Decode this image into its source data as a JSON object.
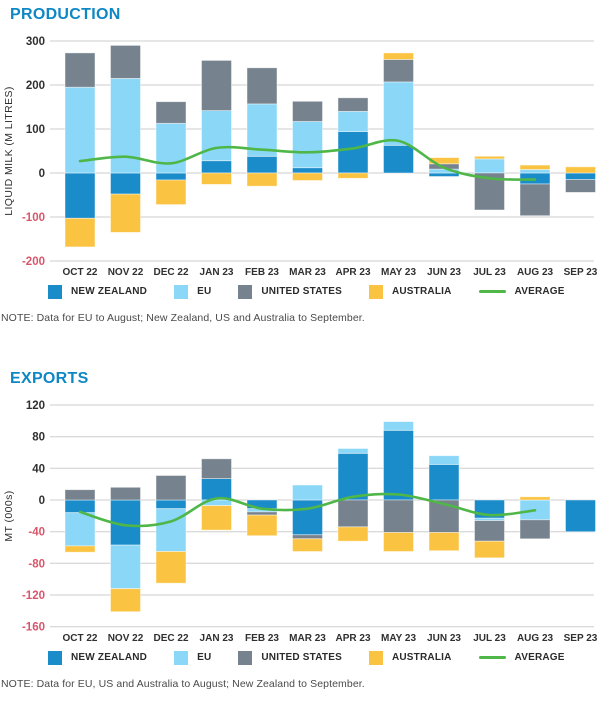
{
  "colors": {
    "title": "#0e87c5",
    "axis_text": "#303030",
    "negative_tick": "#d8566b",
    "gridline": "#cdcdcd",
    "note_text": "#4a4a4c",
    "new_zealand": "#1a8cca",
    "eu": "#8bd7f7",
    "united_states": "#76828d",
    "australia": "#fbc342",
    "average": "#4fb648"
  },
  "chart_data": [
    {
      "id": "production",
      "type": "bar",
      "stacked": true,
      "title": "PRODUCTION",
      "ylabel": "LIQUID MILK (M LITRES)",
      "ylim": [
        -200,
        300
      ],
      "yticks": [
        300,
        200,
        100,
        0,
        -100,
        -200
      ],
      "grid": true,
      "legend_position": "bottom",
      "categories": [
        "OCT 22",
        "NOV 22",
        "DEC 22",
        "JAN 23",
        "FEB 23",
        "MAR 23",
        "APR 23",
        "MAY 23",
        "JUN 23",
        "JUL 23",
        "AUG 23",
        "SEP 23"
      ],
      "series": [
        {
          "name": "NEW ZEALAND",
          "color": "#1a8cca",
          "values": [
            -103,
            -48,
            -16,
            28,
            38,
            12,
            94,
            63,
            -8,
            0,
            -25,
            -15
          ]
        },
        {
          "name": "EU",
          "color": "#8bd7f7",
          "values": [
            195,
            215,
            113,
            114,
            119,
            105,
            46,
            144,
            9,
            32,
            8,
            0
          ]
        },
        {
          "name": "UNITED STATES",
          "color": "#76828d",
          "values": [
            78,
            75,
            49,
            114,
            82,
            46,
            31,
            51,
            12,
            -84,
            -72,
            -29
          ]
        },
        {
          "name": "AUSTRALIA",
          "color": "#fbc342",
          "values": [
            -65,
            -87,
            -56,
            -26,
            -30,
            -17,
            -12,
            15,
            14,
            6,
            10,
            14
          ]
        }
      ],
      "line": {
        "name": "AVERAGE",
        "color": "#4fb648",
        "values": [
          27,
          37,
          22,
          57,
          53,
          47,
          56,
          73,
          12,
          -12,
          -15,
          null
        ]
      },
      "note": "NOTE: Data for EU to August; New Zealand, US and Australia  to September."
    },
    {
      "id": "exports",
      "type": "bar",
      "stacked": true,
      "title": "EXPORTS",
      "ylabel": "MT (000s)",
      "ylim": [
        -160,
        120
      ],
      "yticks": [
        120,
        80,
        40,
        0,
        -40,
        -80,
        -120,
        -160
      ],
      "grid": true,
      "legend_position": "bottom",
      "categories": [
        "OCT 22",
        "NOV 22",
        "DEC 22",
        "JAN 23",
        "FEB 23",
        "MAR 23",
        "APR 23",
        "MAY 23",
        "JUN 23",
        "JUL 23",
        "AUG 23",
        "SEP 23"
      ],
      "series": [
        {
          "name": "NEW ZEALAND",
          "color": "#1a8cca",
          "values": [
            -16,
            -57,
            -11,
            27,
            -11,
            -44,
            59,
            88,
            45,
            -23,
            0,
            -40
          ]
        },
        {
          "name": "EU",
          "color": "#8bd7f7",
          "values": [
            -42,
            -55,
            -54,
            -7,
            -4,
            19,
            6,
            11,
            11,
            -3,
            -25,
            0
          ]
        },
        {
          "name": "UNITED STATES",
          "color": "#76828d",
          "values": [
            13,
            16,
            31,
            25,
            -4,
            -5,
            -34,
            -41,
            -41,
            -26,
            -24,
            0
          ]
        },
        {
          "name": "AUSTRALIA",
          "color": "#fbc342",
          "values": [
            -8,
            -29,
            -40,
            -31,
            -26,
            -16,
            -18,
            -24,
            -23,
            -21,
            4,
            0
          ]
        }
      ],
      "line": {
        "name": "AVERAGE",
        "color": "#4fb648",
        "values": [
          -15,
          -32,
          -27,
          2,
          -11,
          -11,
          4,
          7,
          -5,
          -19,
          -13,
          null
        ]
      },
      "note": "NOTE: Data for EU, US and Australia to August; New Zealand to September."
    }
  ]
}
